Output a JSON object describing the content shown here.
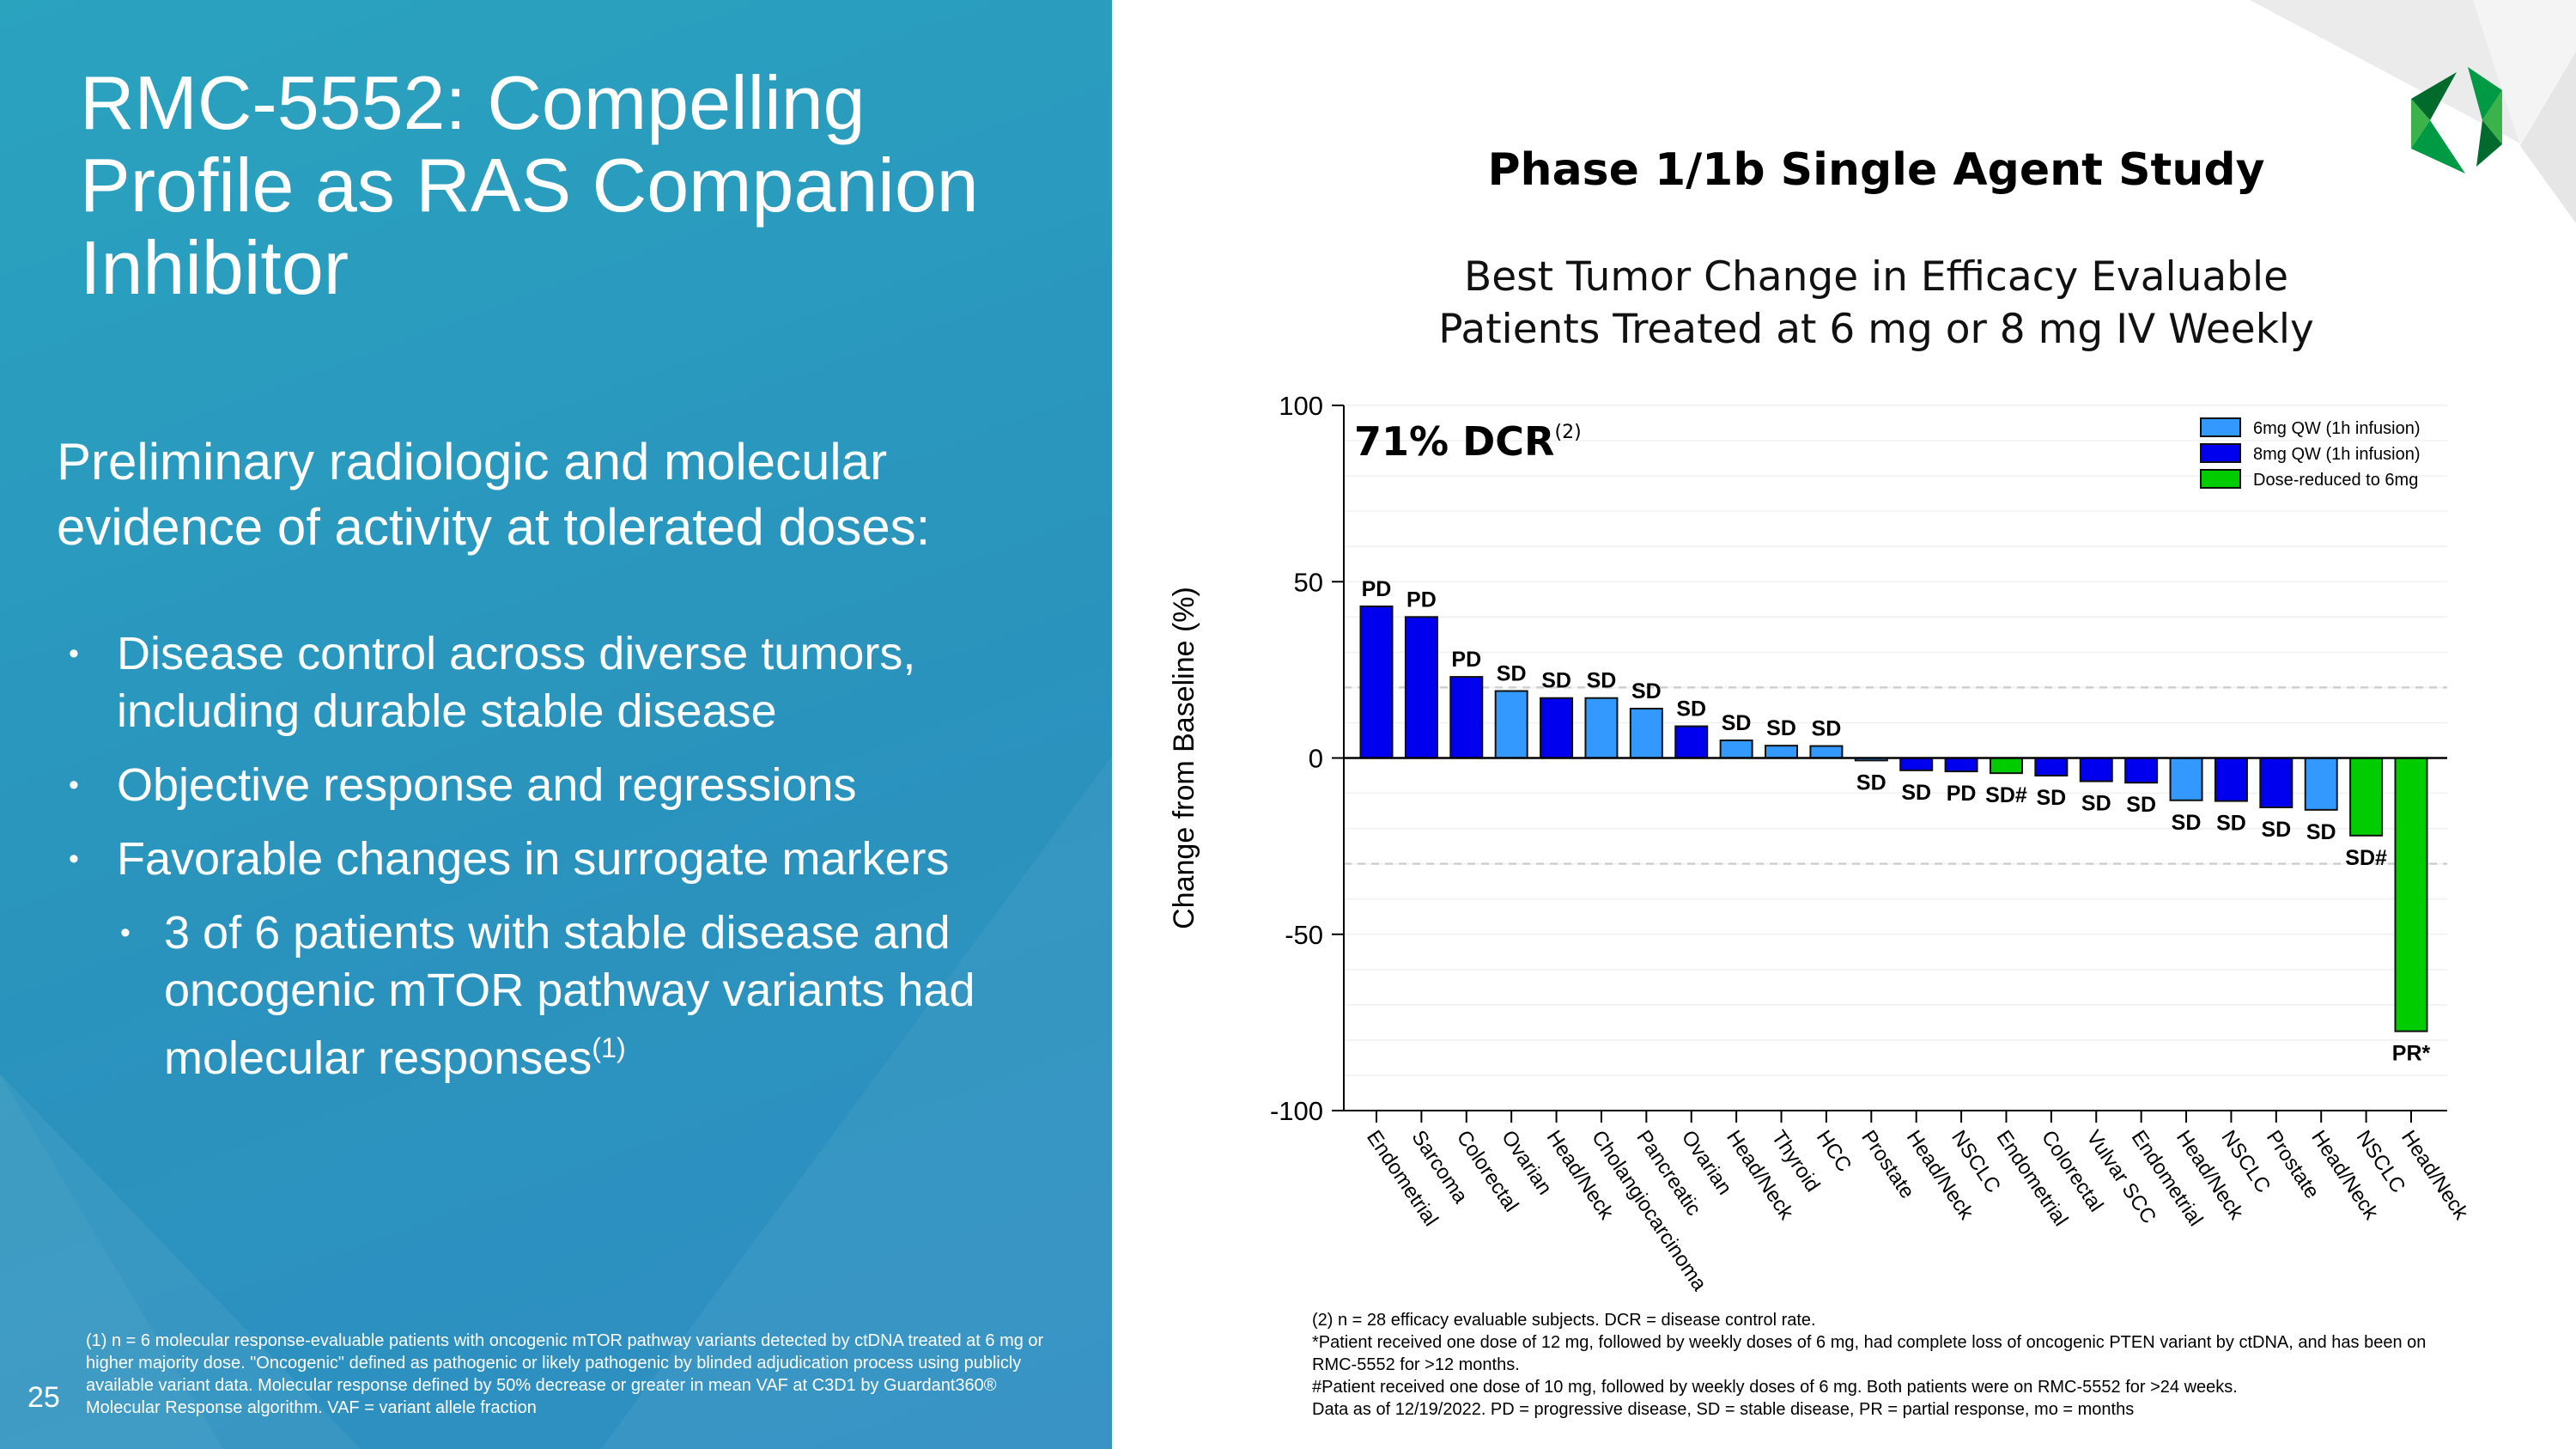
{
  "slide": {
    "title": "RMC-5552: Compelling Profile as RAS Companion Inhibitor",
    "lead": "Preliminary radiologic and molecular evidence of activity at tolerated doses:",
    "bullets": [
      "Disease control across diverse tumors, including durable stable disease",
      "Objective response and regressions",
      "Favorable changes in surrogate markers"
    ],
    "sub_bullet": "3 of 6 patients with stable disease and oncogenic mTOR pathway variants had molecular responses",
    "sub_bullet_sup": "(1)",
    "left_footnote": "(1) n = 6 molecular response-evaluable patients with oncogenic mTOR pathway variants detected by ctDNA treated at 6 mg or higher majority dose. \"Oncogenic\" defined as pathogenic or likely pathogenic by blinded adjudication process using publicly available variant data. Molecular response defined by 50% decrease or greater in mean VAF at C3D1 by Guardant360® Molecular Response algorithm. VAF = variant allele fraction",
    "page_number": "25",
    "right_footnotes": [
      "(2) n = 28 efficacy evaluable subjects.  DCR = disease control rate.",
      "*Patient received one dose of 12 mg, followed by weekly doses of 6 mg, had complete loss of oncogenic PTEN variant by ctDNA, and has been on RMC-5552 for >12 months.",
      "#Patient received one dose of 10 mg, followed by weekly doses of 6 mg. Both patients were on RMC-5552 for >24 weeks.",
      "Data as of 12/19/2022. PD = progressive disease, SD = stable disease, PR = partial response, mo = months"
    ],
    "logo": "green hexagon logo",
    "colors": {
      "panel": "#2a9bbf",
      "logo_dark": "#006b2d",
      "logo_mid": "#009a44",
      "logo_light": "#3cb34a"
    }
  },
  "chart_data": {
    "type": "bar",
    "title": "Phase 1/1b Single Agent Study",
    "subtitle": [
      "Best Tumor Change in Efficacy Evaluable",
      "Patients Treated at 6 mg or 8 mg IV Weekly"
    ],
    "annotation": "71% DCR",
    "annotation_sup": "(2)",
    "ylabel": "Change from Baseline (%)",
    "xlabel": "",
    "ylim": [
      -100,
      100
    ],
    "yticks": [
      100,
      50,
      0,
      -50,
      -100
    ],
    "reference_lines": [
      20,
      -30
    ],
    "grid": true,
    "legend_position": "top-right",
    "legend": [
      {
        "key": "6mg",
        "name": "6mg QW (1h infusion)",
        "color": "#3399ff"
      },
      {
        "key": "8mg",
        "name": "8mg QW (1h infusion)",
        "color": "#0000ee"
      },
      {
        "key": "dr",
        "name": "Dose-reduced to 6mg",
        "color": "#00cc00"
      }
    ],
    "categories": [
      "Endometrial",
      "Sarcoma",
      "Colorectal",
      "Ovarian",
      "Head/Neck",
      "Cholangiocarcinoma",
      "Pancreatic",
      "Ovarian",
      "Head/Neck",
      "Thyroid",
      "HCC",
      "Prostate",
      "Head/Neck",
      "NSCLC",
      "Endometrial",
      "Colorectal",
      "Vulvar SCC",
      "Endometrial",
      "Head/Neck",
      "NSCLC",
      "Prostate",
      "Head/Neck",
      "NSCLC",
      "Head/Neck"
    ],
    "values": [
      43,
      40,
      23,
      19,
      17,
      17,
      14,
      9,
      5,
      3.5,
      3.4,
      -0.7,
      -3.5,
      -3.8,
      -4.3,
      -5,
      -6.6,
      -7,
      -12,
      -12.2,
      -14,
      -14.7,
      -22,
      -77.5
    ],
    "groups": [
      "8mg",
      "8mg",
      "8mg",
      "6mg",
      "8mg",
      "6mg",
      "6mg",
      "8mg",
      "6mg",
      "6mg",
      "6mg",
      "6mg",
      "8mg",
      "8mg",
      "dr",
      "8mg",
      "8mg",
      "8mg",
      "6mg",
      "8mg",
      "8mg",
      "6mg",
      "dr",
      "dr"
    ],
    "bar_labels": [
      "PD",
      "PD",
      "PD",
      "SD",
      "SD",
      "SD",
      "SD",
      "SD",
      "SD",
      "SD",
      "SD",
      "SD",
      "SD",
      "PD",
      "SD#",
      "SD",
      "SD",
      "SD",
      "SD",
      "SD",
      "SD",
      "SD",
      "SD#",
      "PR*"
    ]
  }
}
